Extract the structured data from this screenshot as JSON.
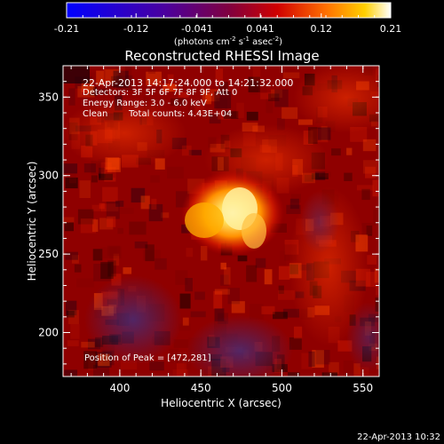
{
  "chart_data": {
    "type": "heatmap",
    "title": "Reconstructed RHESSI Image",
    "xlabel": "Heliocentric X (arcsec)",
    "ylabel": "Heliocentric Y (arcsec)",
    "xlim": [
      365,
      560
    ],
    "ylim": [
      172,
      370
    ],
    "x_ticks": [
      "400",
      "450",
      "500",
      "550"
    ],
    "y_ticks": [
      "200",
      "250",
      "300",
      "350"
    ],
    "colorbar": {
      "range": [
        -0.21,
        0.21
      ],
      "tick_labels": [
        "-0.21",
        "-0.12",
        "-0.041",
        "0.041",
        "0.12",
        "0.21"
      ],
      "unit_label": "(photons cm",
      "unit_exp1": "-2",
      "unit_mid": " s",
      "unit_exp2": "-1",
      "unit_mid2": " asec",
      "unit_exp3": "-2",
      "unit_end": ")"
    },
    "annotations": {
      "time": "22-Apr-2013 14:17:24.000 to 14:21:32.000",
      "detectors": "Detectors: 3F 5F 6F 7F 8F 9F, Att 0",
      "energy": "Energy Range: 3.0 - 6.0 keV",
      "clean": "Clean",
      "counts": "Total counts: 4.43E+04",
      "peak": "Position of Peak = [472,281]"
    },
    "peak": {
      "x": 472,
      "y": 281,
      "value": 0.21
    },
    "colors": {
      "background": "#000000",
      "low": "#5a2a7a",
      "mid": "#b40000",
      "high": "#ffffb0"
    }
  },
  "footer": {
    "timestamp": "22-Apr-2013 10:32"
  }
}
